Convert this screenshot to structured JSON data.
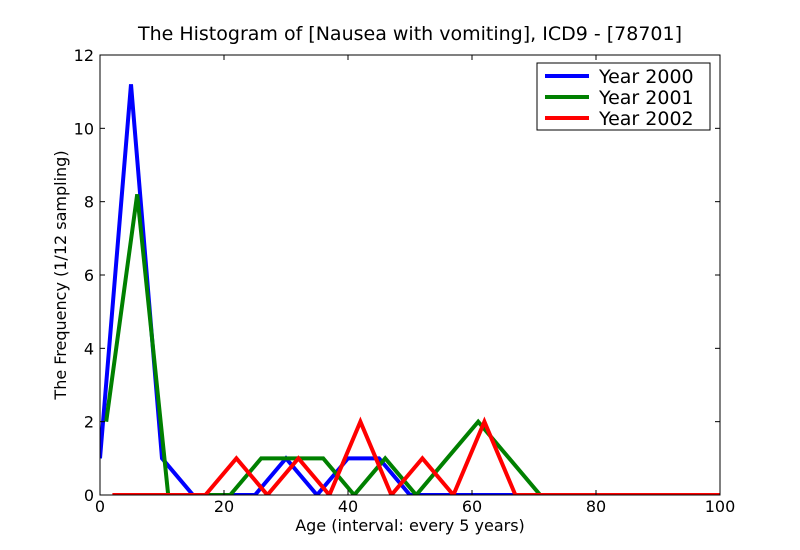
{
  "chart_data": {
    "type": "line",
    "title": "The Histogram of [Nausea with vomiting], ICD9 - [78701]",
    "xlabel": "Age (interval: every 5 years)",
    "ylabel": "The Frequency (1/12 sampling)",
    "xlim": [
      0,
      100
    ],
    "ylim": [
      0,
      12
    ],
    "xticks": [
      0,
      20,
      40,
      60,
      80,
      100
    ],
    "yticks": [
      0,
      2,
      4,
      6,
      8,
      10,
      12
    ],
    "grid": false,
    "legend_position": "top-right",
    "series": [
      {
        "name": "Year 2000",
        "color": "#0000ff",
        "x": [
          0,
          5,
          10,
          15,
          20,
          25,
          30,
          35,
          40,
          45,
          50,
          55,
          60,
          65,
          70,
          75,
          80,
          85,
          90,
          95,
          100
        ],
        "y": [
          1,
          11.2,
          1,
          0,
          0,
          0,
          1,
          0,
          1,
          1,
          0,
          0,
          0,
          0,
          0,
          0,
          0,
          0,
          0,
          0,
          0
        ]
      },
      {
        "name": "Year 2001",
        "color": "#008000",
        "x": [
          1,
          6,
          11,
          16,
          21,
          26,
          31,
          36,
          41,
          46,
          51,
          56,
          61,
          66,
          71,
          76,
          81,
          86,
          91,
          96,
          100
        ],
        "y": [
          2,
          8.2,
          0,
          0,
          0,
          1,
          1,
          1,
          0,
          1,
          0,
          1,
          2,
          1,
          0,
          0,
          0,
          0,
          0,
          0,
          0
        ]
      },
      {
        "name": "Year 2002",
        "color": "#ff0000",
        "x": [
          2,
          7,
          12,
          17,
          22,
          27,
          32,
          37,
          42,
          47,
          52,
          57,
          62,
          67,
          72,
          77,
          82,
          87,
          92,
          97,
          100
        ],
        "y": [
          0,
          0,
          0,
          0,
          1,
          0,
          1,
          0,
          2,
          0,
          1,
          0,
          2,
          0,
          0,
          0,
          0,
          0,
          0,
          0,
          0
        ]
      }
    ]
  }
}
